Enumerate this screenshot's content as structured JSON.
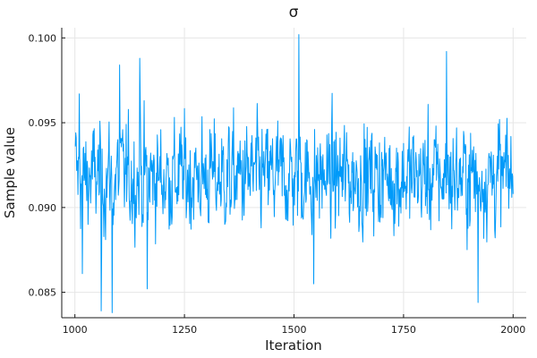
{
  "chart_data": {
    "type": "line",
    "title": "σ",
    "xlabel": "Iteration",
    "ylabel": "Sample value",
    "xlim": [
      970,
      2030
    ],
    "ylim": [
      0.0835,
      0.1006
    ],
    "xticks": [
      1000,
      1250,
      1500,
      1750,
      2000
    ],
    "xtick_labels": [
      "1000",
      "1250",
      "1500",
      "1750",
      "2000"
    ],
    "yticks": [
      0.085,
      0.09,
      0.095,
      0.1
    ],
    "ytick_labels": [
      "0.085",
      "0.090",
      "0.095",
      "0.100"
    ],
    "grid": true,
    "legend": "none",
    "series": [
      {
        "color": "#009af9",
        "x": [
          1001,
          2000
        ],
        "y_mean": 0.0918,
        "y_min": 0.0838,
        "y_max": 0.1002,
        "marked_points": [
          {
            "x": 1001,
            "y": 0.0936
          },
          {
            "x": 1010,
            "y": 0.0967
          },
          {
            "x": 1017,
            "y": 0.0861
          },
          {
            "x": 1060,
            "y": 0.0839
          },
          {
            "x": 1085,
            "y": 0.0838
          },
          {
            "x": 1102,
            "y": 0.0984
          },
          {
            "x": 1148,
            "y": 0.0988
          },
          {
            "x": 1165,
            "y": 0.0852
          },
          {
            "x": 1511,
            "y": 0.1002
          },
          {
            "x": 1545,
            "y": 0.0855
          },
          {
            "x": 1848,
            "y": 0.0992
          },
          {
            "x": 1920,
            "y": 0.0844
          },
          {
            "x": 1997,
            "y": 0.0906
          },
          {
            "x": 2000,
            "y": 0.0908
          }
        ]
      }
    ]
  }
}
